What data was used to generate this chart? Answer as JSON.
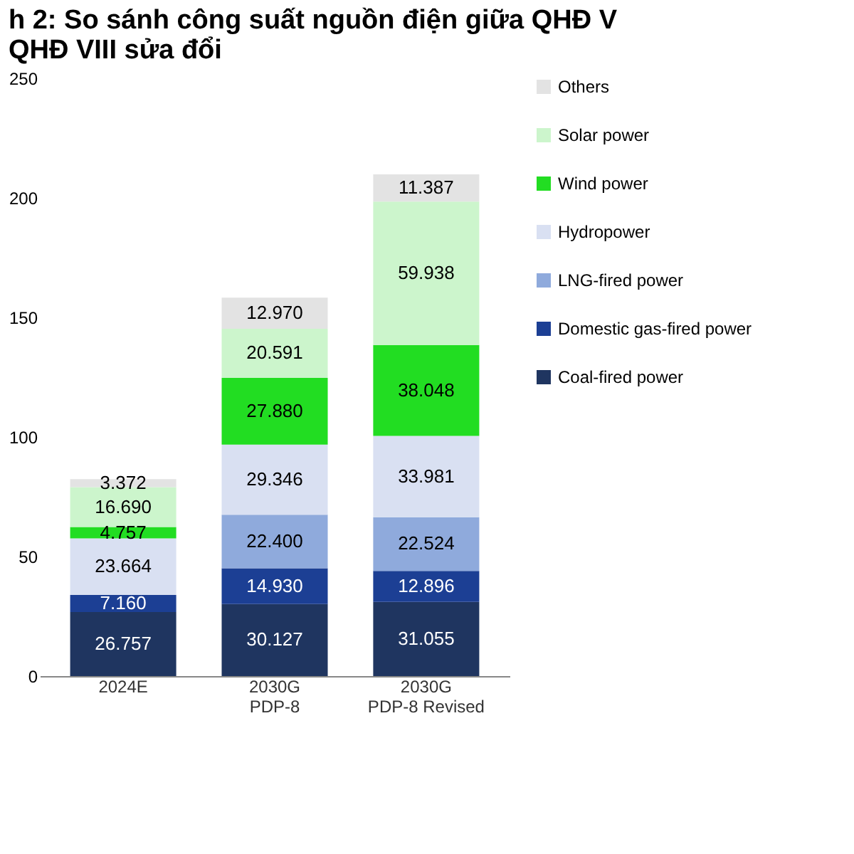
{
  "chart_data": {
    "type": "bar",
    "stacked": true,
    "title": [
      "h 2: So sánh công suất nguồn điện giữa QHĐ V",
      "QHĐ VIII sửa đổi"
    ],
    "categories": [
      "2024E",
      "2030G\nPDP-8",
      "2030G\nPDP-8 Revised"
    ],
    "series": [
      {
        "name": "Coal-fired power",
        "color": "#1f3560",
        "values": [
          26.757,
          30.127,
          31.055
        ]
      },
      {
        "name": "Domestic gas-fired power",
        "color": "#1c3f94",
        "values": [
          7.16,
          14.93,
          12.896
        ]
      },
      {
        "name": "LNG-fired power",
        "color": "#8faadc",
        "values": [
          null,
          22.4,
          22.524
        ]
      },
      {
        "name": "Hydropower",
        "color": "#d9e0f2",
        "values": [
          23.664,
          29.346,
          33.981
        ]
      },
      {
        "name": "Wind power",
        "color": "#22dd22",
        "values": [
          4.757,
          27.88,
          38.048
        ]
      },
      {
        "name": "Solar power",
        "color": "#ccf5cc",
        "values": [
          16.69,
          20.591,
          59.938
        ]
      },
      {
        "name": "Others",
        "color": "#e3e3e3",
        "values": [
          3.372,
          12.97,
          11.387
        ]
      }
    ],
    "value_labels": [
      [
        "26.757",
        "30.127",
        "31.055"
      ],
      [
        "7.160",
        "14.930",
        "12.896"
      ],
      [
        null,
        "22.400",
        "22.524"
      ],
      [
        "23.664",
        "29.346",
        "33.981"
      ],
      [
        "4.757",
        "27.880",
        "38.048"
      ],
      [
        "16.690",
        "20.591",
        "59.938"
      ],
      [
        "3.372",
        "12.970",
        "11.387"
      ]
    ],
    "ylim": [
      0,
      250
    ],
    "yticks": [
      0,
      50,
      100,
      150,
      200,
      250
    ],
    "grid": false,
    "legend": "right"
  }
}
